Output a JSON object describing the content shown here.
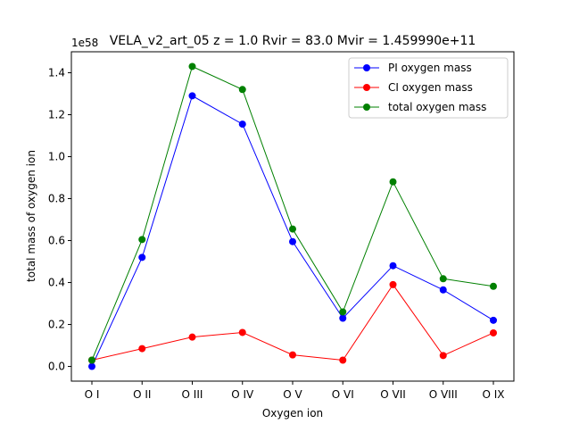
{
  "chart_data": {
    "type": "line",
    "title": "VELA_v2_art_05 z = 1.0 Rvir = 83.0 Mvir = 1.459990e+11",
    "xlabel": "Oxygen ion",
    "ylabel": "total mass of oxygen ion",
    "y_offset_label": "1e58",
    "categories": [
      "O I",
      "O II",
      "O III",
      "O IV",
      "O V",
      "O VI",
      "O VII",
      "O VIII",
      "O IX"
    ],
    "yticks": [
      "0.0",
      "0.2",
      "0.4",
      "0.6",
      "0.8",
      "1.0",
      "1.2",
      "1.4"
    ],
    "ylim": [
      -0.07,
      1.5
    ],
    "legend_position": "top-right",
    "grid": false,
    "series": [
      {
        "name": "PI oxygen mass",
        "color": "#0000ff",
        "values": [
          0.0,
          0.52,
          1.29,
          1.155,
          0.595,
          0.23,
          0.48,
          0.365,
          0.22
        ]
      },
      {
        "name": "CI oxygen mass",
        "color": "#ff0000",
        "values": [
          0.03,
          0.085,
          0.14,
          0.162,
          0.055,
          0.03,
          0.39,
          0.052,
          0.16
        ]
      },
      {
        "name": "total oxygen mass",
        "color": "#008000",
        "values": [
          0.03,
          0.605,
          1.43,
          1.32,
          0.655,
          0.26,
          0.88,
          0.418,
          0.382
        ]
      }
    ]
  }
}
